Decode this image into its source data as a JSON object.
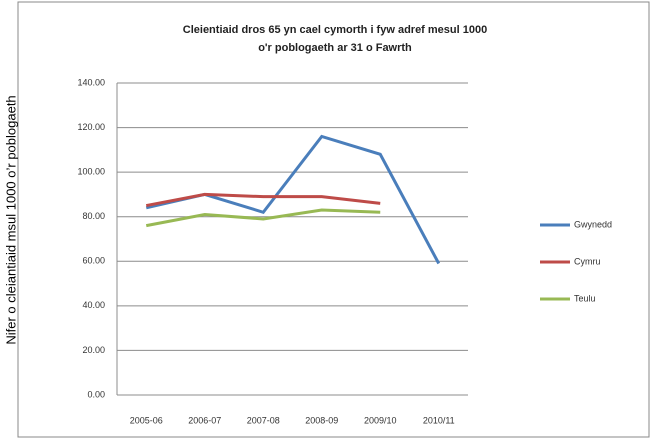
{
  "chart_data": {
    "type": "line",
    "title": "Cleientiaid dros 65 yn cael cymorth i fyw adref mesul 1000 o'r poblogaeth ar 31 o Fawrth",
    "y_label": "Nifer o cleiantiaid msul 1000 o’r poblogaeth",
    "categories": [
      "2005-06",
      "2006-07",
      "2007-08",
      "2008-09",
      "2009/10",
      "2010/11"
    ],
    "series": [
      {
        "name": "Gwynedd",
        "color": "#4a7ebb",
        "values": [
          84,
          90,
          82,
          116,
          108,
          59
        ]
      },
      {
        "name": "Cymru",
        "color": "#be4b48",
        "values": [
          85,
          90,
          89,
          89,
          86,
          null
        ]
      },
      {
        "name": "Teulu",
        "color": "#98b954",
        "values": [
          76,
          81,
          79,
          83,
          82,
          null
        ]
      }
    ],
    "ylim": [
      0,
      140
    ],
    "yticks": [
      {
        "value": 0,
        "label": "0.00"
      },
      {
        "value": 20,
        "label": "20.00"
      },
      {
        "value": 40,
        "label": "40.00"
      },
      {
        "value": 60,
        "label": "60.00"
      },
      {
        "value": 80,
        "label": "80.00"
      },
      {
        "value": 100,
        "label": "100.00"
      },
      {
        "value": 120,
        "label": "120.00"
      },
      {
        "value": 140,
        "label": "140.00"
      }
    ],
    "grid": true,
    "legend": "right"
  }
}
